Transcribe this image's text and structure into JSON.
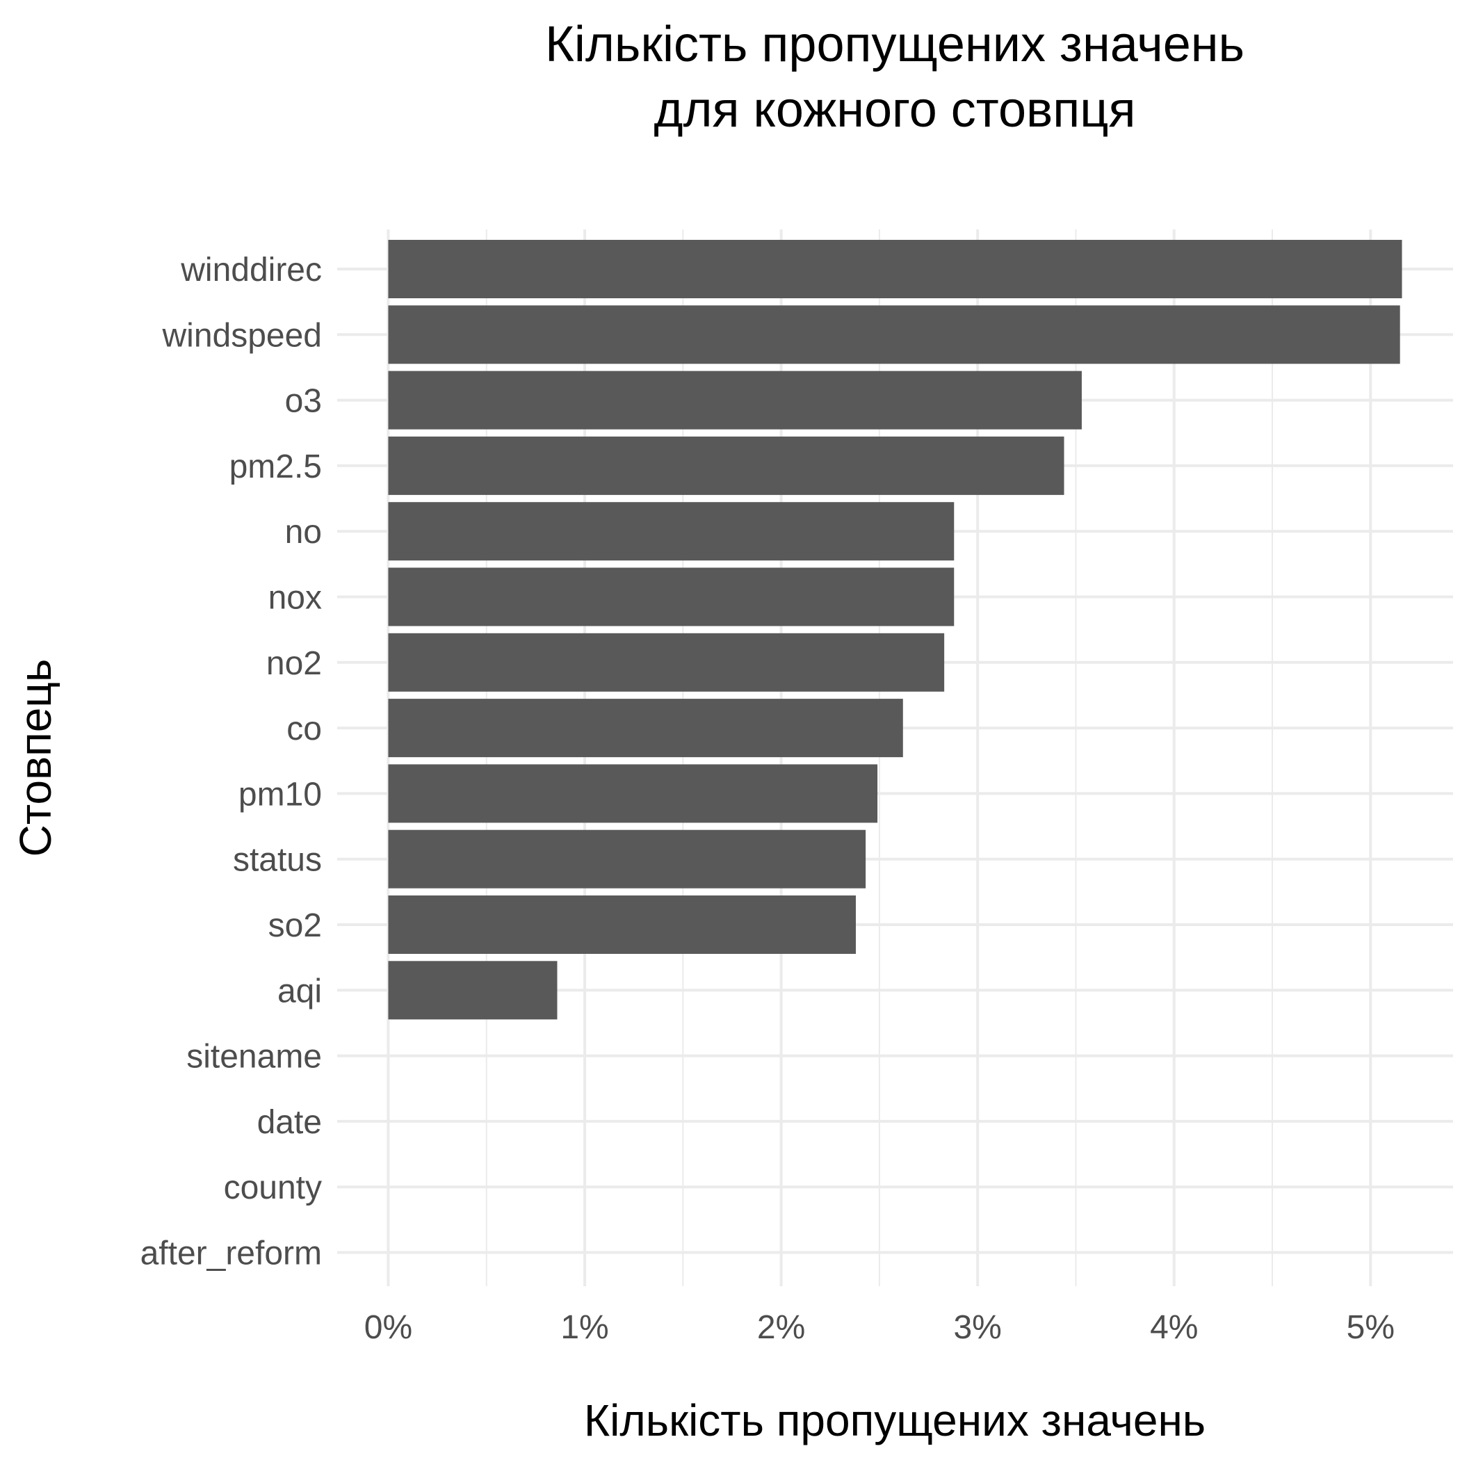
{
  "chart_data": {
    "type": "bar",
    "orientation": "horizontal",
    "title_lines": [
      "Кількість пропущених значень",
      "для кожного стовпця"
    ],
    "xlabel": "Кількість пропущених значень",
    "ylabel": "Стовпець",
    "categories": [
      "winddirec",
      "windspeed",
      "o3",
      "pm2.5",
      "no",
      "nox",
      "no2",
      "co",
      "pm10",
      "status",
      "so2",
      "aqi",
      "sitename",
      "date",
      "county",
      "after_reform"
    ],
    "values": [
      5.16,
      5.15,
      3.53,
      3.44,
      2.88,
      2.88,
      2.83,
      2.62,
      2.49,
      2.43,
      2.38,
      0.86,
      0,
      0,
      0,
      0
    ],
    "value_unit": "%",
    "xlim": [
      -0.26,
      5.42
    ],
    "xticks": [
      0,
      1,
      2,
      3,
      4,
      5
    ],
    "xtick_labels": [
      "0%",
      "1%",
      "2%",
      "3%",
      "4%",
      "5%"
    ],
    "grid": true,
    "bar_color": "#595959",
    "grid_color": "#ebebeb",
    "tick_label_color": "#4d4d4d"
  }
}
